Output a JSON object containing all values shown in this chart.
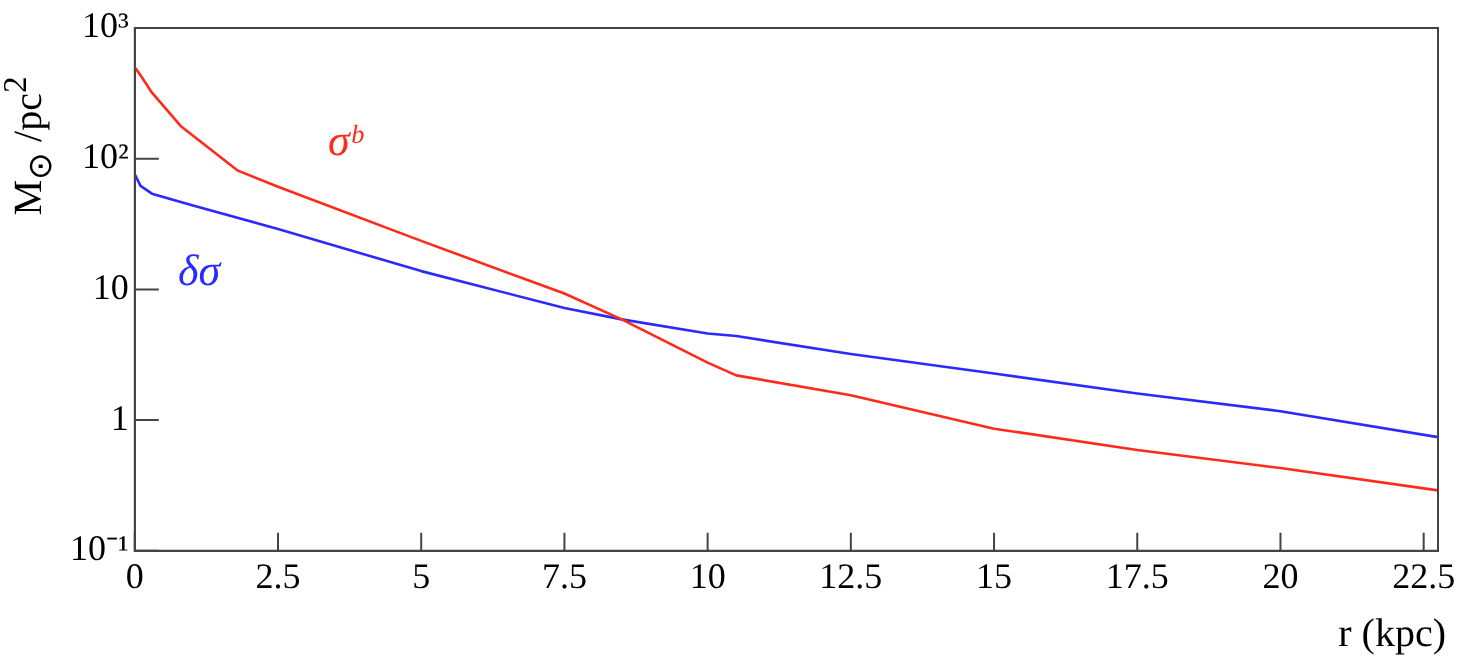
{
  "chart_data": {
    "type": "line",
    "xlabel": "r (kpc)",
    "ylabel": "M$_{⊙}$ /pc$^{2}$",
    "log": "y",
    "grid": false,
    "legend": false,
    "marker": "none",
    "line_style": "solid",
    "xlim": [
      0,
      22.75
    ],
    "xticks": [
      0,
      2.5,
      5,
      7.5,
      10,
      12.5,
      15,
      17.5,
      20,
      22.5
    ],
    "ylim": [
      0.1,
      1000
    ],
    "yticks": [
      {
        "value": 0.1,
        "label": "10⁻¹"
      },
      1,
      10,
      {
        "value": 100,
        "label": "10²"
      },
      {
        "value": 1000,
        "label": "10³"
      }
    ],
    "series": [
      {
        "name": "σᵇ",
        "color": "#ff2a1a",
        "x": [
          0,
          0.1,
          0.3,
          0.8,
          1.8,
          2.5,
          5,
          7.5,
          8.5,
          10,
          10.5,
          12.5,
          15,
          17.5,
          20,
          22.75
        ],
        "values": [
          500,
          435,
          320,
          178,
          81,
          61,
          23.5,
          9.3,
          5.9,
          2.75,
          2.2,
          1.55,
          0.86,
          0.59,
          0.43,
          0.29
        ]
      },
      {
        "name": "δσ",
        "color": "#2a2aff",
        "x": [
          0,
          0.1,
          0.3,
          1,
          2.5,
          5,
          7.5,
          8.5,
          10,
          10.5,
          12.5,
          15,
          17.5,
          20,
          22.75
        ],
        "values": [
          76,
          62,
          54,
          44,
          29,
          13.8,
          7.2,
          5.9,
          4.6,
          4.4,
          3.2,
          2.27,
          1.6,
          1.17,
          0.74
        ]
      }
    ]
  }
}
